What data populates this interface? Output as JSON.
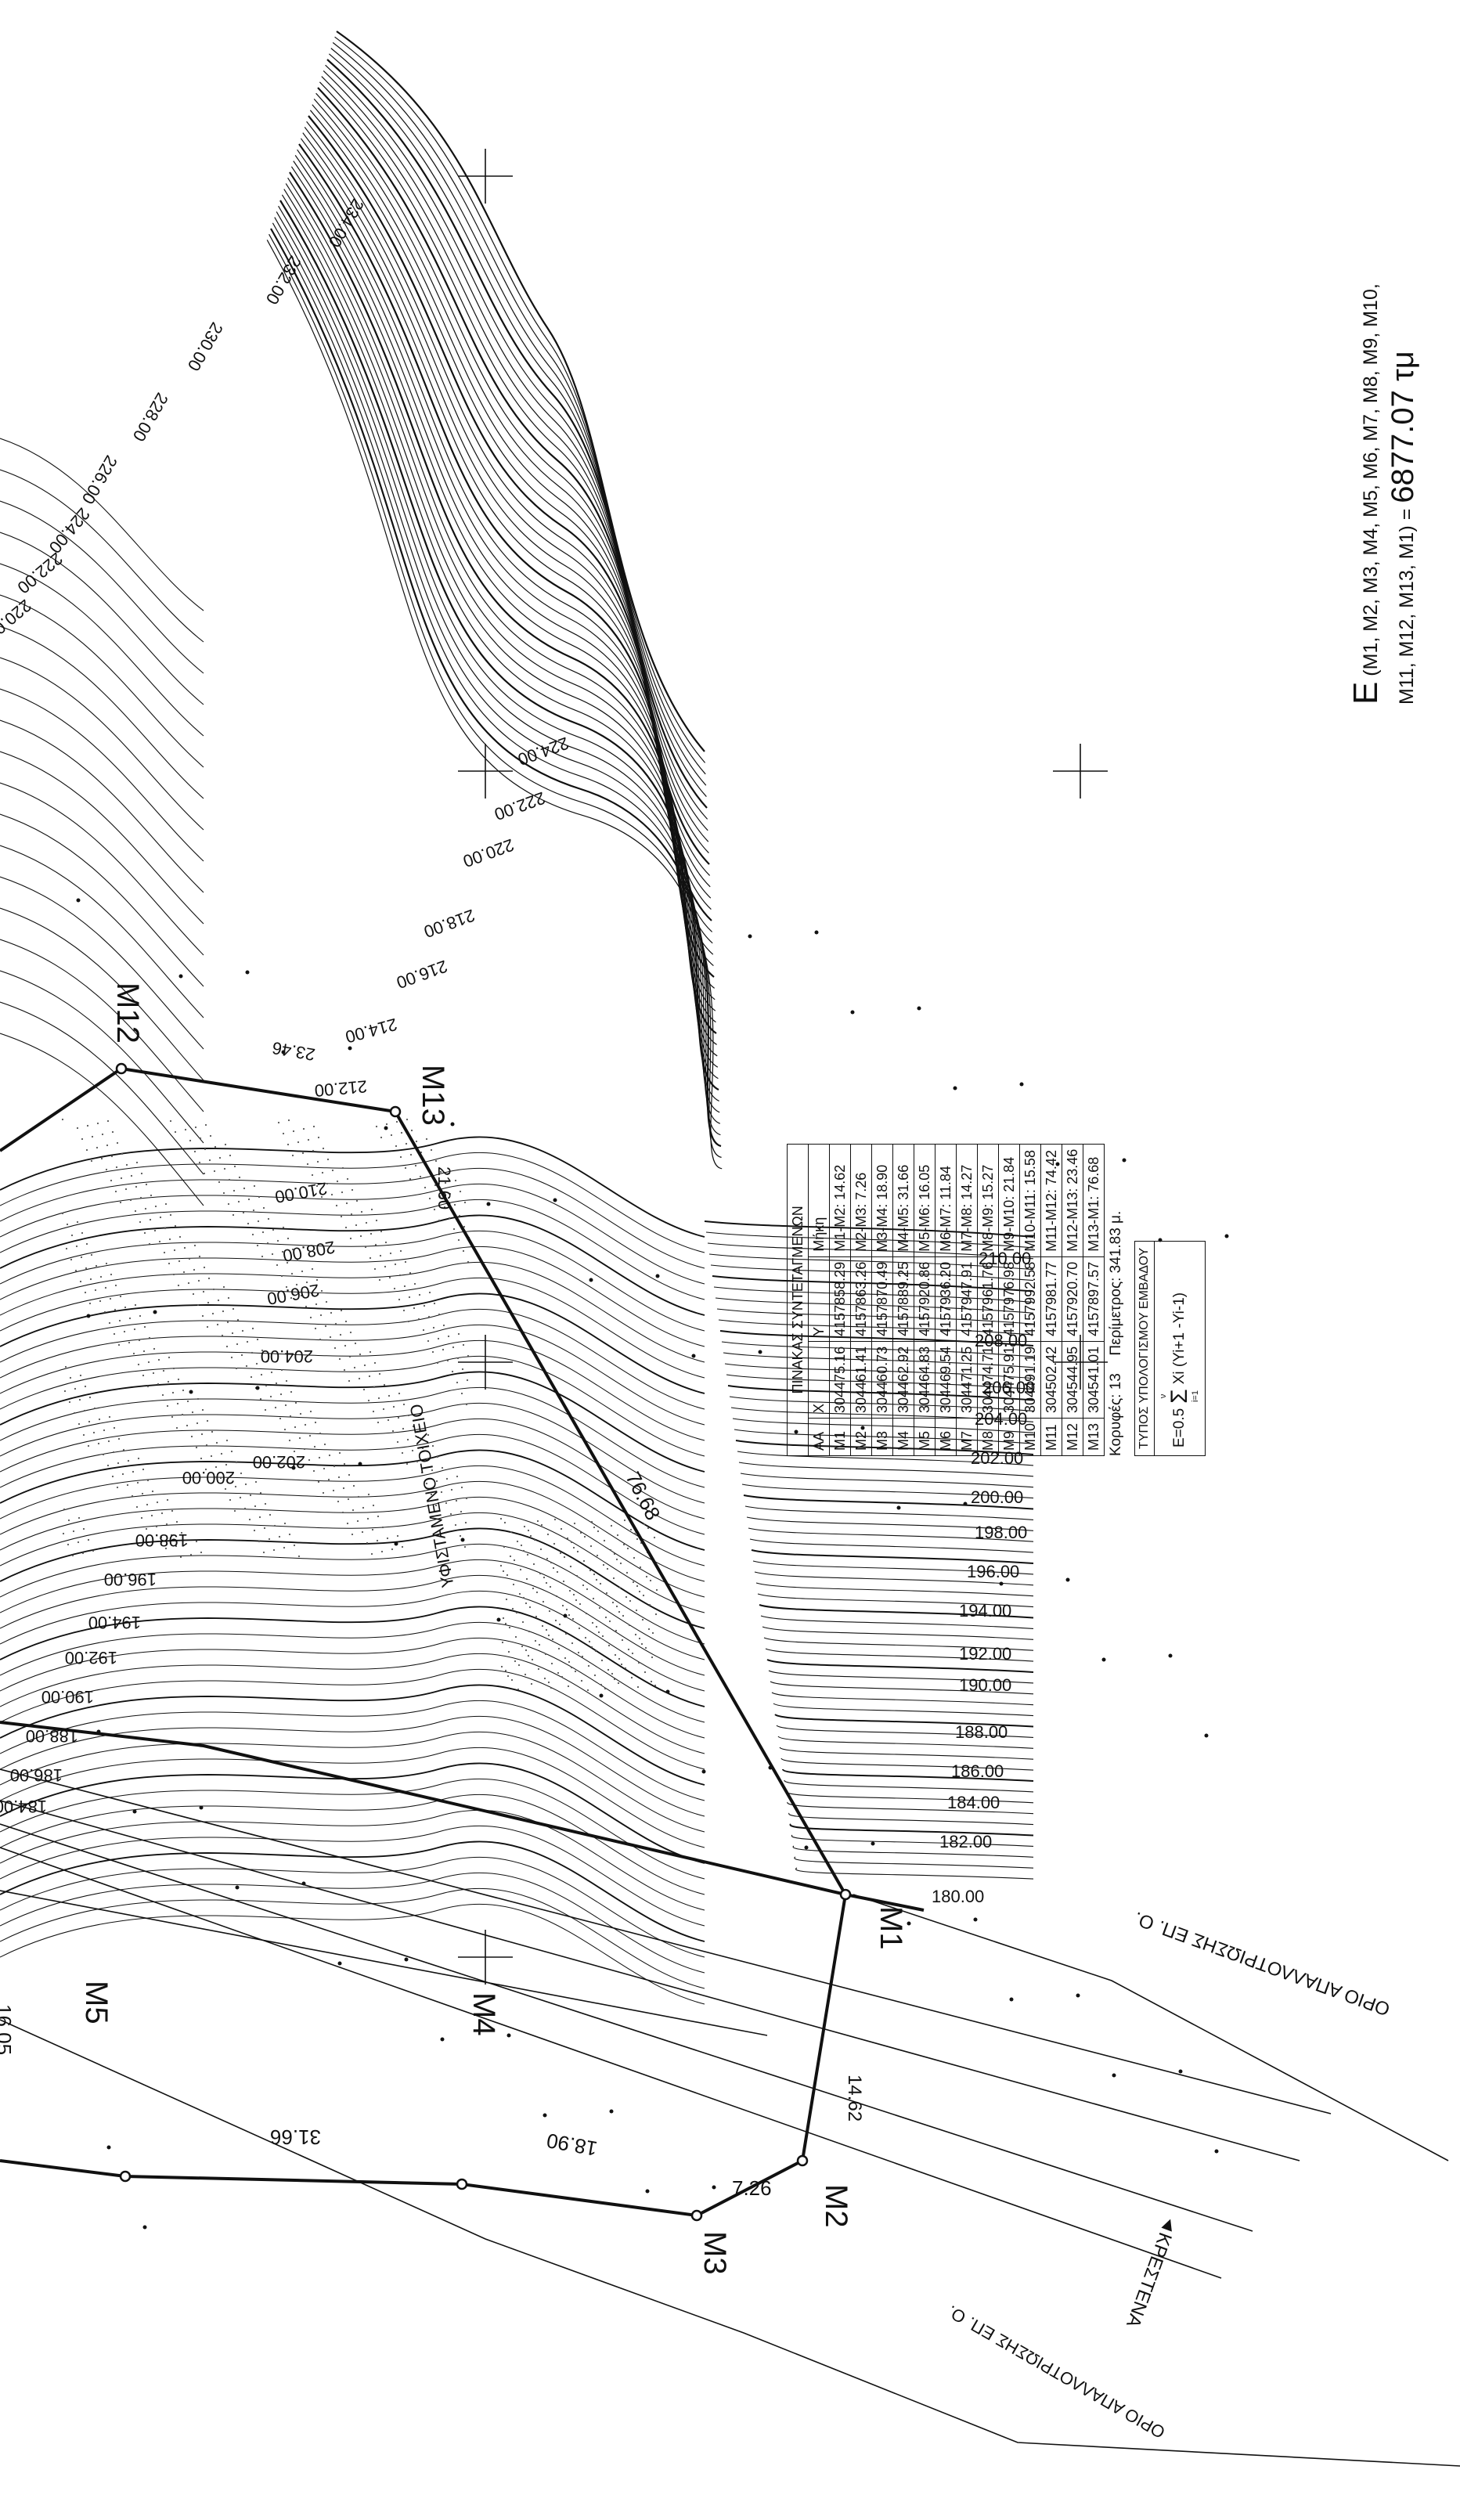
{
  "points": [
    {
      "id": "M1",
      "x": "304475.16",
      "y": "4157858.29",
      "edge": "M1-M2: 14.62"
    },
    {
      "id": "M2",
      "x": "304461.41",
      "y": "4157863.26",
      "edge": "M2-M3: 7.26"
    },
    {
      "id": "M3",
      "x": "304460.73",
      "y": "4157870.49",
      "edge": "M3-M4: 18.90"
    },
    {
      "id": "M4",
      "x": "304462.92",
      "y": "4157889.25",
      "edge": "M4-M5: 31.66"
    },
    {
      "id": "M5",
      "x": "304464.83",
      "y": "4157920.86",
      "edge": "M5-M6: 16.05"
    },
    {
      "id": "M6",
      "x": "304469.54",
      "y": "4157936.20",
      "edge": "M6-M7: 11.84"
    },
    {
      "id": "M7",
      "x": "304471.25",
      "y": "4157947.91",
      "edge": "M7-M8: 14.27"
    },
    {
      "id": "M8",
      "x": "304474.71",
      "y": "4157961.76",
      "edge": "M8-M9: 15.27"
    },
    {
      "id": "M9",
      "x": "304475.91",
      "y": "4157976.98",
      "edge": "M9-M10: 21.84"
    },
    {
      "id": "M10",
      "x": "304491.19",
      "y": "4157992.58",
      "edge": "M10-M11: 15.58"
    },
    {
      "id": "M11",
      "x": "304502.42",
      "y": "4157981.77",
      "edge": "M11-M12: 74.42"
    },
    {
      "id": "M12",
      "x": "304544.95",
      "y": "4157920.70",
      "edge": "M12-M13: 23.46"
    },
    {
      "id": "M13",
      "x": "304541.01",
      "y": "4157897.57",
      "edge": "M13-M1: 76.68"
    }
  ],
  "table": {
    "title": "ΠΙΝΑΚΑΣ ΣΥΝΤΕΤΑΓΜΕΝΩΝ",
    "headers": [
      "ΑΑ",
      "X",
      "Y",
      "Μήκη"
    ],
    "vertices_label": "Κορυφές:  13",
    "perimeter_label": "Περίμετρος:  341.83 μ."
  },
  "formula": {
    "caption": "ΤΥΠΟΣ ΥΠΟΛΟΓΙΣΜΟΥ ΕΜΒΑΔΟΥ",
    "prefix": "E=0.5",
    "sigma_top": "ν",
    "sigma_sym": "Σ",
    "sigma_bottom": "i=1",
    "term": "Xi (Yi+1 -Yi-1)"
  },
  "area": {
    "symbol": "E",
    "line1": "(M1, M2, M3, M4, M5, M6, M7, M8, M9, M10,",
    "line2": "M11, M12, M13, M1) =",
    "value": "6877.07 τμ"
  },
  "boundary": {
    "vertex_labels": [
      "M1",
      "M2",
      "M3",
      "M4",
      "M5",
      "M12",
      "M13"
    ],
    "edge_labels": [
      "14.62",
      "7.26",
      "18.90",
      "31.66",
      "16.05",
      "23.46",
      "21.60",
      "76.68"
    ]
  },
  "contours": {
    "labels": [
      "234.00",
      "232.00",
      "230.00",
      "228.00",
      "226.00",
      "224.00",
      "222.00",
      "220.00",
      "218.00",
      "224.00",
      "222.00",
      "220.00",
      "218.00",
      "216.00",
      "214.00",
      "212.00",
      "210.00",
      "210.00",
      "208.00",
      "206.00",
      "204.00",
      "202.00",
      "200.00",
      "198.00",
      "196.00",
      "194.00",
      "192.00",
      "190.00",
      "188.00",
      "186.00",
      "184.00",
      "182.00",
      "180.00",
      "208.00",
      "206.00",
      "204.00",
      "202.00",
      "200.00",
      "198.00",
      "196.00",
      "194.00",
      "192.00",
      "190.00",
      "188.00",
      "186.00",
      "184.00"
    ]
  },
  "annotations": {
    "wall": "ΥΦΙΣΤΑΜΕΝΟ ΤΟΙΧΕΙΟ",
    "boundary_top": "ΟΡΙΟ ΑΠΑΛΛΟΤΡΙΩΣΗΣ ΕΠ. Ο.",
    "boundary_bottom": "ΟΡΙΟ ΑΠΑΛΛΟΤΡΙΩΣΗΣ ΕΠ. Ο.",
    "road": "◄ΚΡΕΣΤΕΝΑ"
  },
  "colors": {
    "ink": "#111111",
    "light_ink": "#555555",
    "paper": "#ffffff"
  }
}
